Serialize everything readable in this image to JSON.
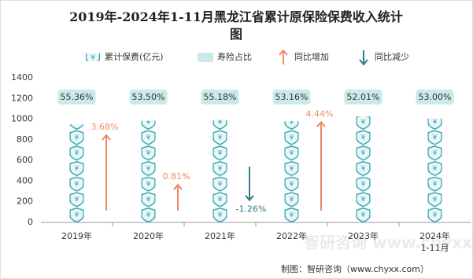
{
  "chart_data": {
    "type": "pictorial-bar",
    "title": "2019年-2024年1-11月黑龙江省累计原保险保费收入统计图",
    "categories": [
      "2019年",
      "2020年",
      "2021年",
      "2022年",
      "2023年",
      "2024年1-11月"
    ],
    "series": [
      {
        "name": "累计保费(亿元)",
        "color": "#2fa3b2",
        "values": [
          950,
          985,
          993,
          980,
          1024,
          1005
        ]
      }
    ],
    "life_share": {
      "name": "寿险占比",
      "color": "#c9eaea",
      "values": [
        55.36,
        53.5,
        55.18,
        53.16,
        52.01,
        53.0
      ],
      "value_labels": [
        "55.36%",
        "53.50%",
        "55.18%",
        "53.16%",
        "52.01%",
        "53.00%"
      ]
    },
    "growth": {
      "up_name": "同比增加",
      "down_name": "同比减少",
      "up_color": "#ec8a63",
      "down_color": "#2f7f8c",
      "values": [
        3.68,
        0.81,
        -1.26,
        4.44
      ],
      "value_labels": [
        "3.68%",
        "0.81%",
        "-1.26%",
        "4.44%"
      ]
    },
    "ylim": [
      0,
      1400
    ],
    "yticks": [
      0,
      200,
      400,
      600,
      800,
      1000,
      1200,
      1400
    ],
    "grid": false,
    "source": "制图：智研咨询（www.chyxx.com）",
    "watermark": "智研咨询 www.chyxx.com"
  }
}
